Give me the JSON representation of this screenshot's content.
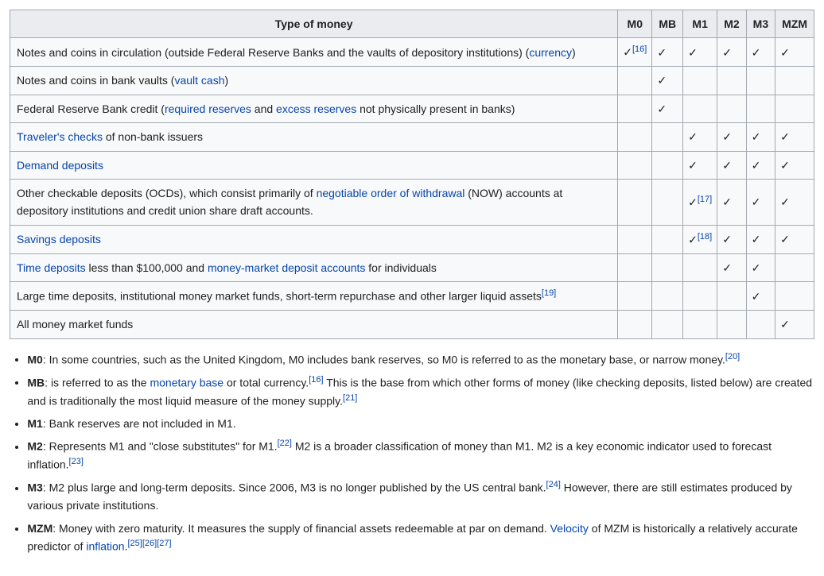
{
  "table": {
    "headers": [
      "Type of money",
      "M0",
      "MB",
      "M1",
      "M2",
      "M3",
      "MZM"
    ],
    "check_glyph": "✓",
    "rows": [
      {
        "segments": [
          {
            "t": "Notes and coins in circulation (outside Federal Reserve Banks and the vaults of depository institutions) ("
          },
          {
            "t": "currency",
            "link": true
          },
          {
            "t": ")"
          }
        ],
        "cells": [
          {
            "check": true,
            "ref": "[16]"
          },
          {
            "check": true
          },
          {
            "check": true
          },
          {
            "check": true
          },
          {
            "check": true
          },
          {
            "check": true
          }
        ]
      },
      {
        "segments": [
          {
            "t": "Notes and coins in bank vaults ("
          },
          {
            "t": "vault cash",
            "link": true
          },
          {
            "t": ")"
          }
        ],
        "cells": [
          {},
          {
            "check": true
          },
          {},
          {},
          {},
          {}
        ]
      },
      {
        "segments": [
          {
            "t": "Federal Reserve Bank credit ("
          },
          {
            "t": "required reserves",
            "link": true
          },
          {
            "t": " and "
          },
          {
            "t": "excess reserves",
            "link": true
          },
          {
            "t": " not physically present in banks)"
          }
        ],
        "cells": [
          {},
          {
            "check": true
          },
          {},
          {},
          {},
          {}
        ]
      },
      {
        "segments": [
          {
            "t": "Traveler's checks",
            "link": true
          },
          {
            "t": " of non-bank issuers"
          }
        ],
        "cells": [
          {},
          {},
          {
            "check": true
          },
          {
            "check": true
          },
          {
            "check": true
          },
          {
            "check": true
          }
        ]
      },
      {
        "segments": [
          {
            "t": "Demand deposits",
            "link": true
          }
        ],
        "cells": [
          {},
          {},
          {
            "check": true
          },
          {
            "check": true
          },
          {
            "check": true
          },
          {
            "check": true
          }
        ]
      },
      {
        "segments": [
          {
            "t": "Other checkable deposits (OCDs), which consist primarily of "
          },
          {
            "t": "negotiable order of withdrawal",
            "link": true
          },
          {
            "t": " (NOW) accounts at depository institutions and credit union share draft accounts."
          }
        ],
        "cells": [
          {},
          {},
          {
            "check": true,
            "ref": "[17]"
          },
          {
            "check": true
          },
          {
            "check": true
          },
          {
            "check": true
          }
        ]
      },
      {
        "segments": [
          {
            "t": "Savings deposits",
            "link": true
          }
        ],
        "cells": [
          {},
          {},
          {
            "check": true,
            "ref": "[18]"
          },
          {
            "check": true
          },
          {
            "check": true
          },
          {
            "check": true
          }
        ]
      },
      {
        "segments": [
          {
            "t": "Time deposits",
            "link": true
          },
          {
            "t": " less than $100,000 and "
          },
          {
            "t": "money-market deposit accounts",
            "link": true
          },
          {
            "t": " for individuals"
          }
        ],
        "cells": [
          {},
          {},
          {},
          {
            "check": true
          },
          {
            "check": true
          },
          {}
        ]
      },
      {
        "segments": [
          {
            "t": "Large time deposits, institutional money market funds, short-term repurchase and other larger liquid assets"
          }
        ],
        "trailing_ref": "[19]",
        "cells": [
          {},
          {},
          {},
          {},
          {
            "check": true
          },
          {}
        ]
      },
      {
        "segments": [
          {
            "t": "All money market funds"
          }
        ],
        "cells": [
          {},
          {},
          {},
          {},
          {},
          {
            "check": true
          }
        ]
      }
    ]
  },
  "bullets": [
    {
      "segments": [
        {
          "t": "M0",
          "bold": true
        },
        {
          "t": ": In some countries, such as the United Kingdom, M0 includes bank reserves, so M0 is referred to as the monetary base, or narrow money."
        },
        {
          "t": "[20]",
          "sup_link": true
        }
      ]
    },
    {
      "segments": [
        {
          "t": "MB",
          "bold": true
        },
        {
          "t": ": is referred to as the "
        },
        {
          "t": "monetary base",
          "link": true
        },
        {
          "t": " or total currency."
        },
        {
          "t": "[16]",
          "sup_link": true
        },
        {
          "t": " This is the base from which other forms of money (like checking deposits, listed below) are created and is traditionally the most liquid measure of the money supply."
        },
        {
          "t": "[21]",
          "sup_link": true
        }
      ]
    },
    {
      "segments": [
        {
          "t": "M1",
          "bold": true
        },
        {
          "t": ": Bank reserves are not included in M1."
        }
      ]
    },
    {
      "segments": [
        {
          "t": "M2",
          "bold": true
        },
        {
          "t": ": Represents M1 and \"close substitutes\" for M1."
        },
        {
          "t": "[22]",
          "sup_link": true
        },
        {
          "t": " M2 is a broader classification of money than M1. M2 is a key economic indicator used to forecast inflation."
        },
        {
          "t": "[23]",
          "sup_link": true
        }
      ]
    },
    {
      "segments": [
        {
          "t": "M3",
          "bold": true
        },
        {
          "t": ": M2 plus large and long-term deposits. Since 2006, M3 is no longer published by the US central bank."
        },
        {
          "t": "[24]",
          "sup_link": true
        },
        {
          "t": " However, there are still estimates produced by various private institutions."
        }
      ]
    },
    {
      "segments": [
        {
          "t": "MZM",
          "bold": true
        },
        {
          "t": ": Money with zero maturity. It measures the supply of financial assets redeemable at par on demand. "
        },
        {
          "t": "Velocity",
          "link": true
        },
        {
          "t": " of MZM is historically a relatively accurate predictor of "
        },
        {
          "t": "inflation",
          "link": true
        },
        {
          "t": "."
        },
        {
          "t": "[25]",
          "sup_link": true
        },
        {
          "t": "[26]",
          "sup_link": true
        },
        {
          "t": "[27]",
          "sup_link": true
        }
      ]
    }
  ]
}
